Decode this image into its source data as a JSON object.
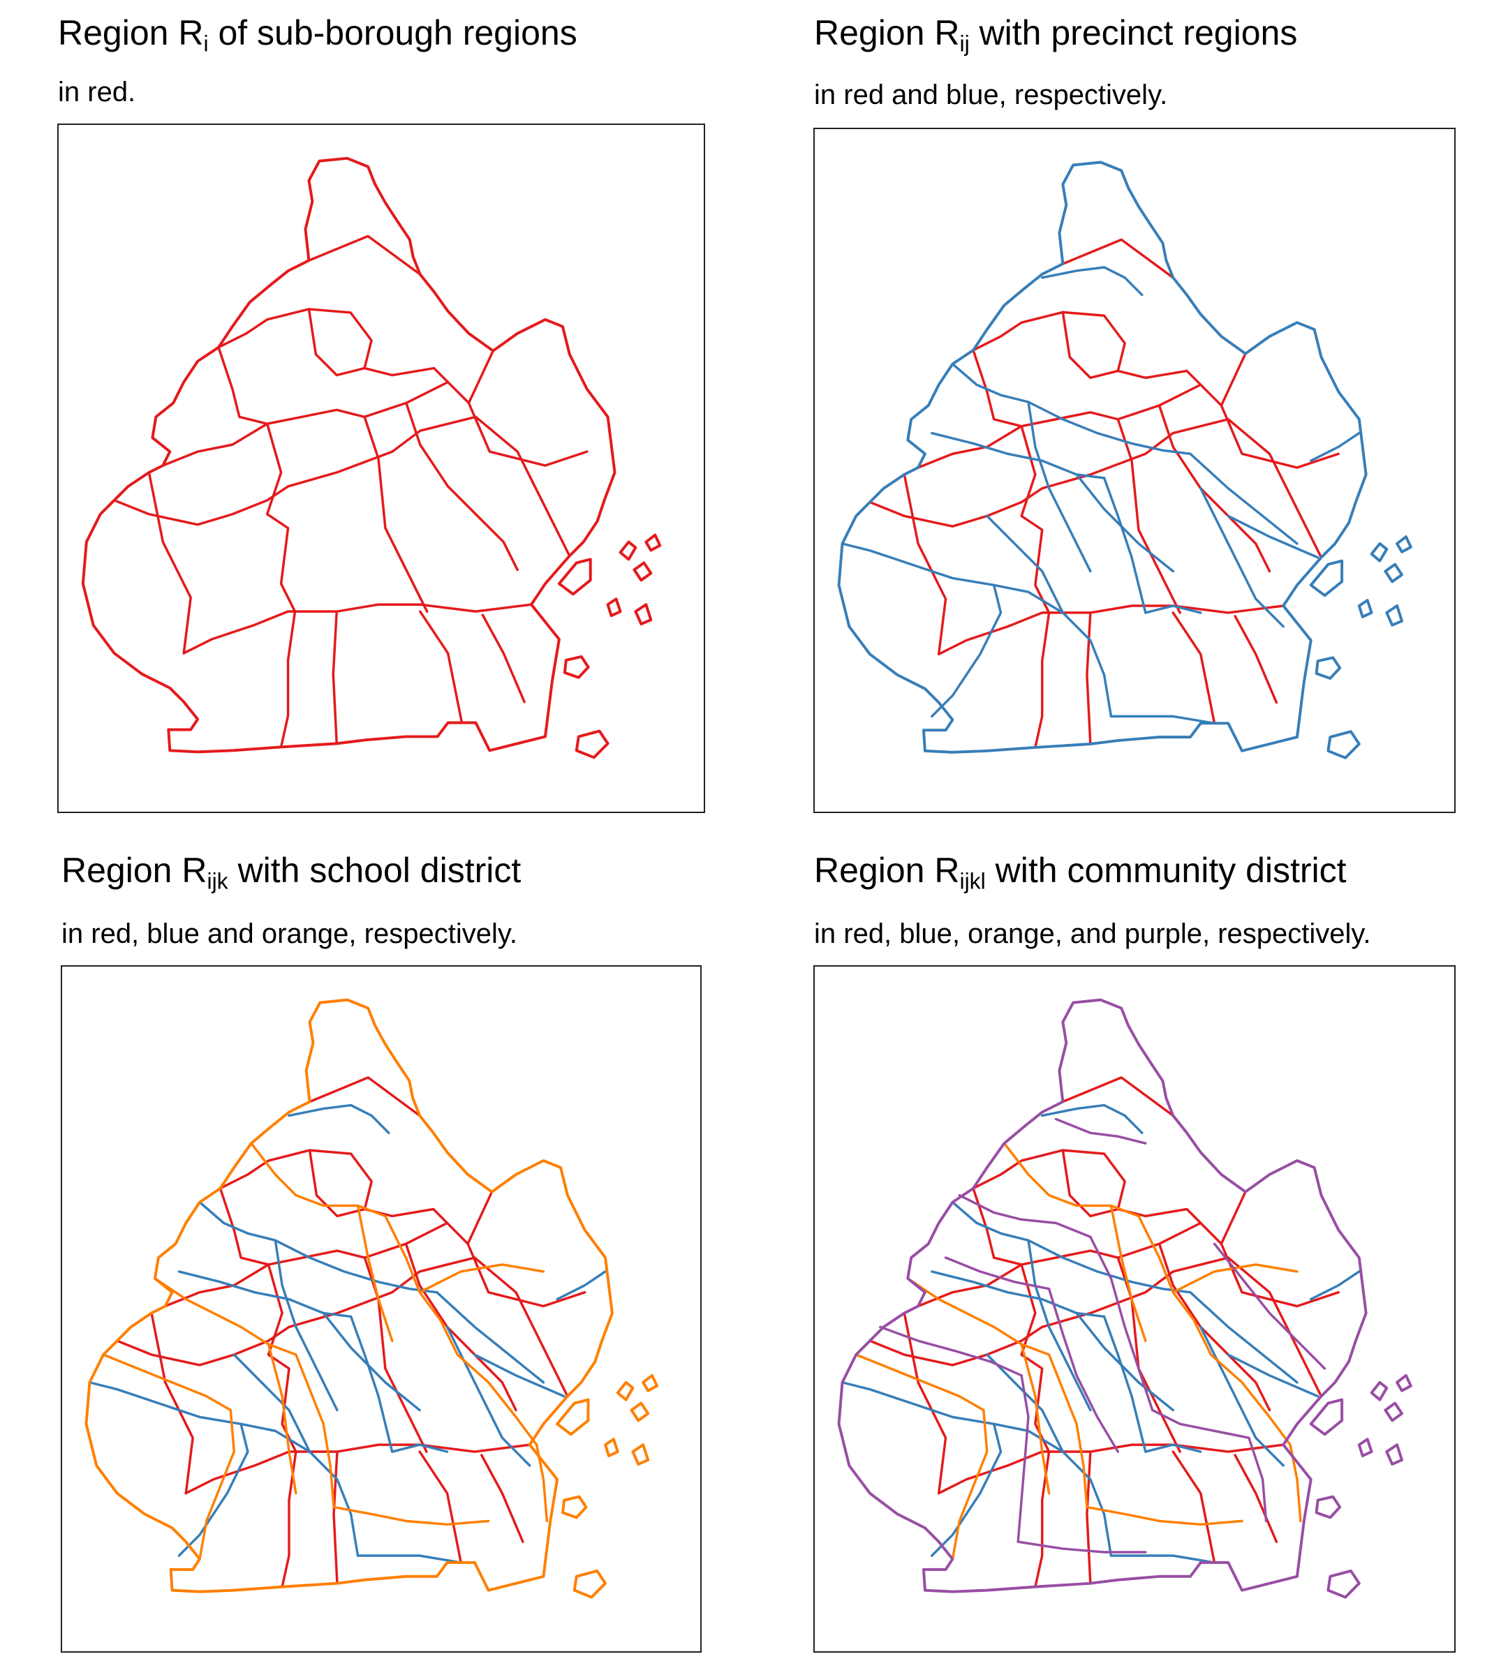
{
  "colors": {
    "red": "#e41a1c",
    "blue": "#377eb8",
    "orange": "#ff7f00",
    "purple": "#984ea3"
  },
  "panels": [
    {
      "title_main": "Region R",
      "title_sub": "i",
      "title_rest": " of sub-borough regions",
      "subtitle": "in red.",
      "layers": [
        "red"
      ]
    },
    {
      "title_main": "Region R",
      "title_sub": "ij",
      "title_rest": " with precinct regions",
      "subtitle": "in red and blue, respectively.",
      "layers": [
        "red",
        "blue"
      ]
    },
    {
      "title_main": "Region R",
      "title_sub": "ijk",
      "title_rest": " with school district",
      "subtitle": "in red, blue and orange, respectively.",
      "layers": [
        "red",
        "blue",
        "orange"
      ]
    },
    {
      "title_main": "Region  R",
      "title_sub": "ijkl",
      "title_rest": " with community district",
      "subtitle": "in red, blue, orange, and purple, respectively.",
      "layers": [
        "red",
        "blue",
        "orange",
        "purple"
      ]
    }
  ]
}
